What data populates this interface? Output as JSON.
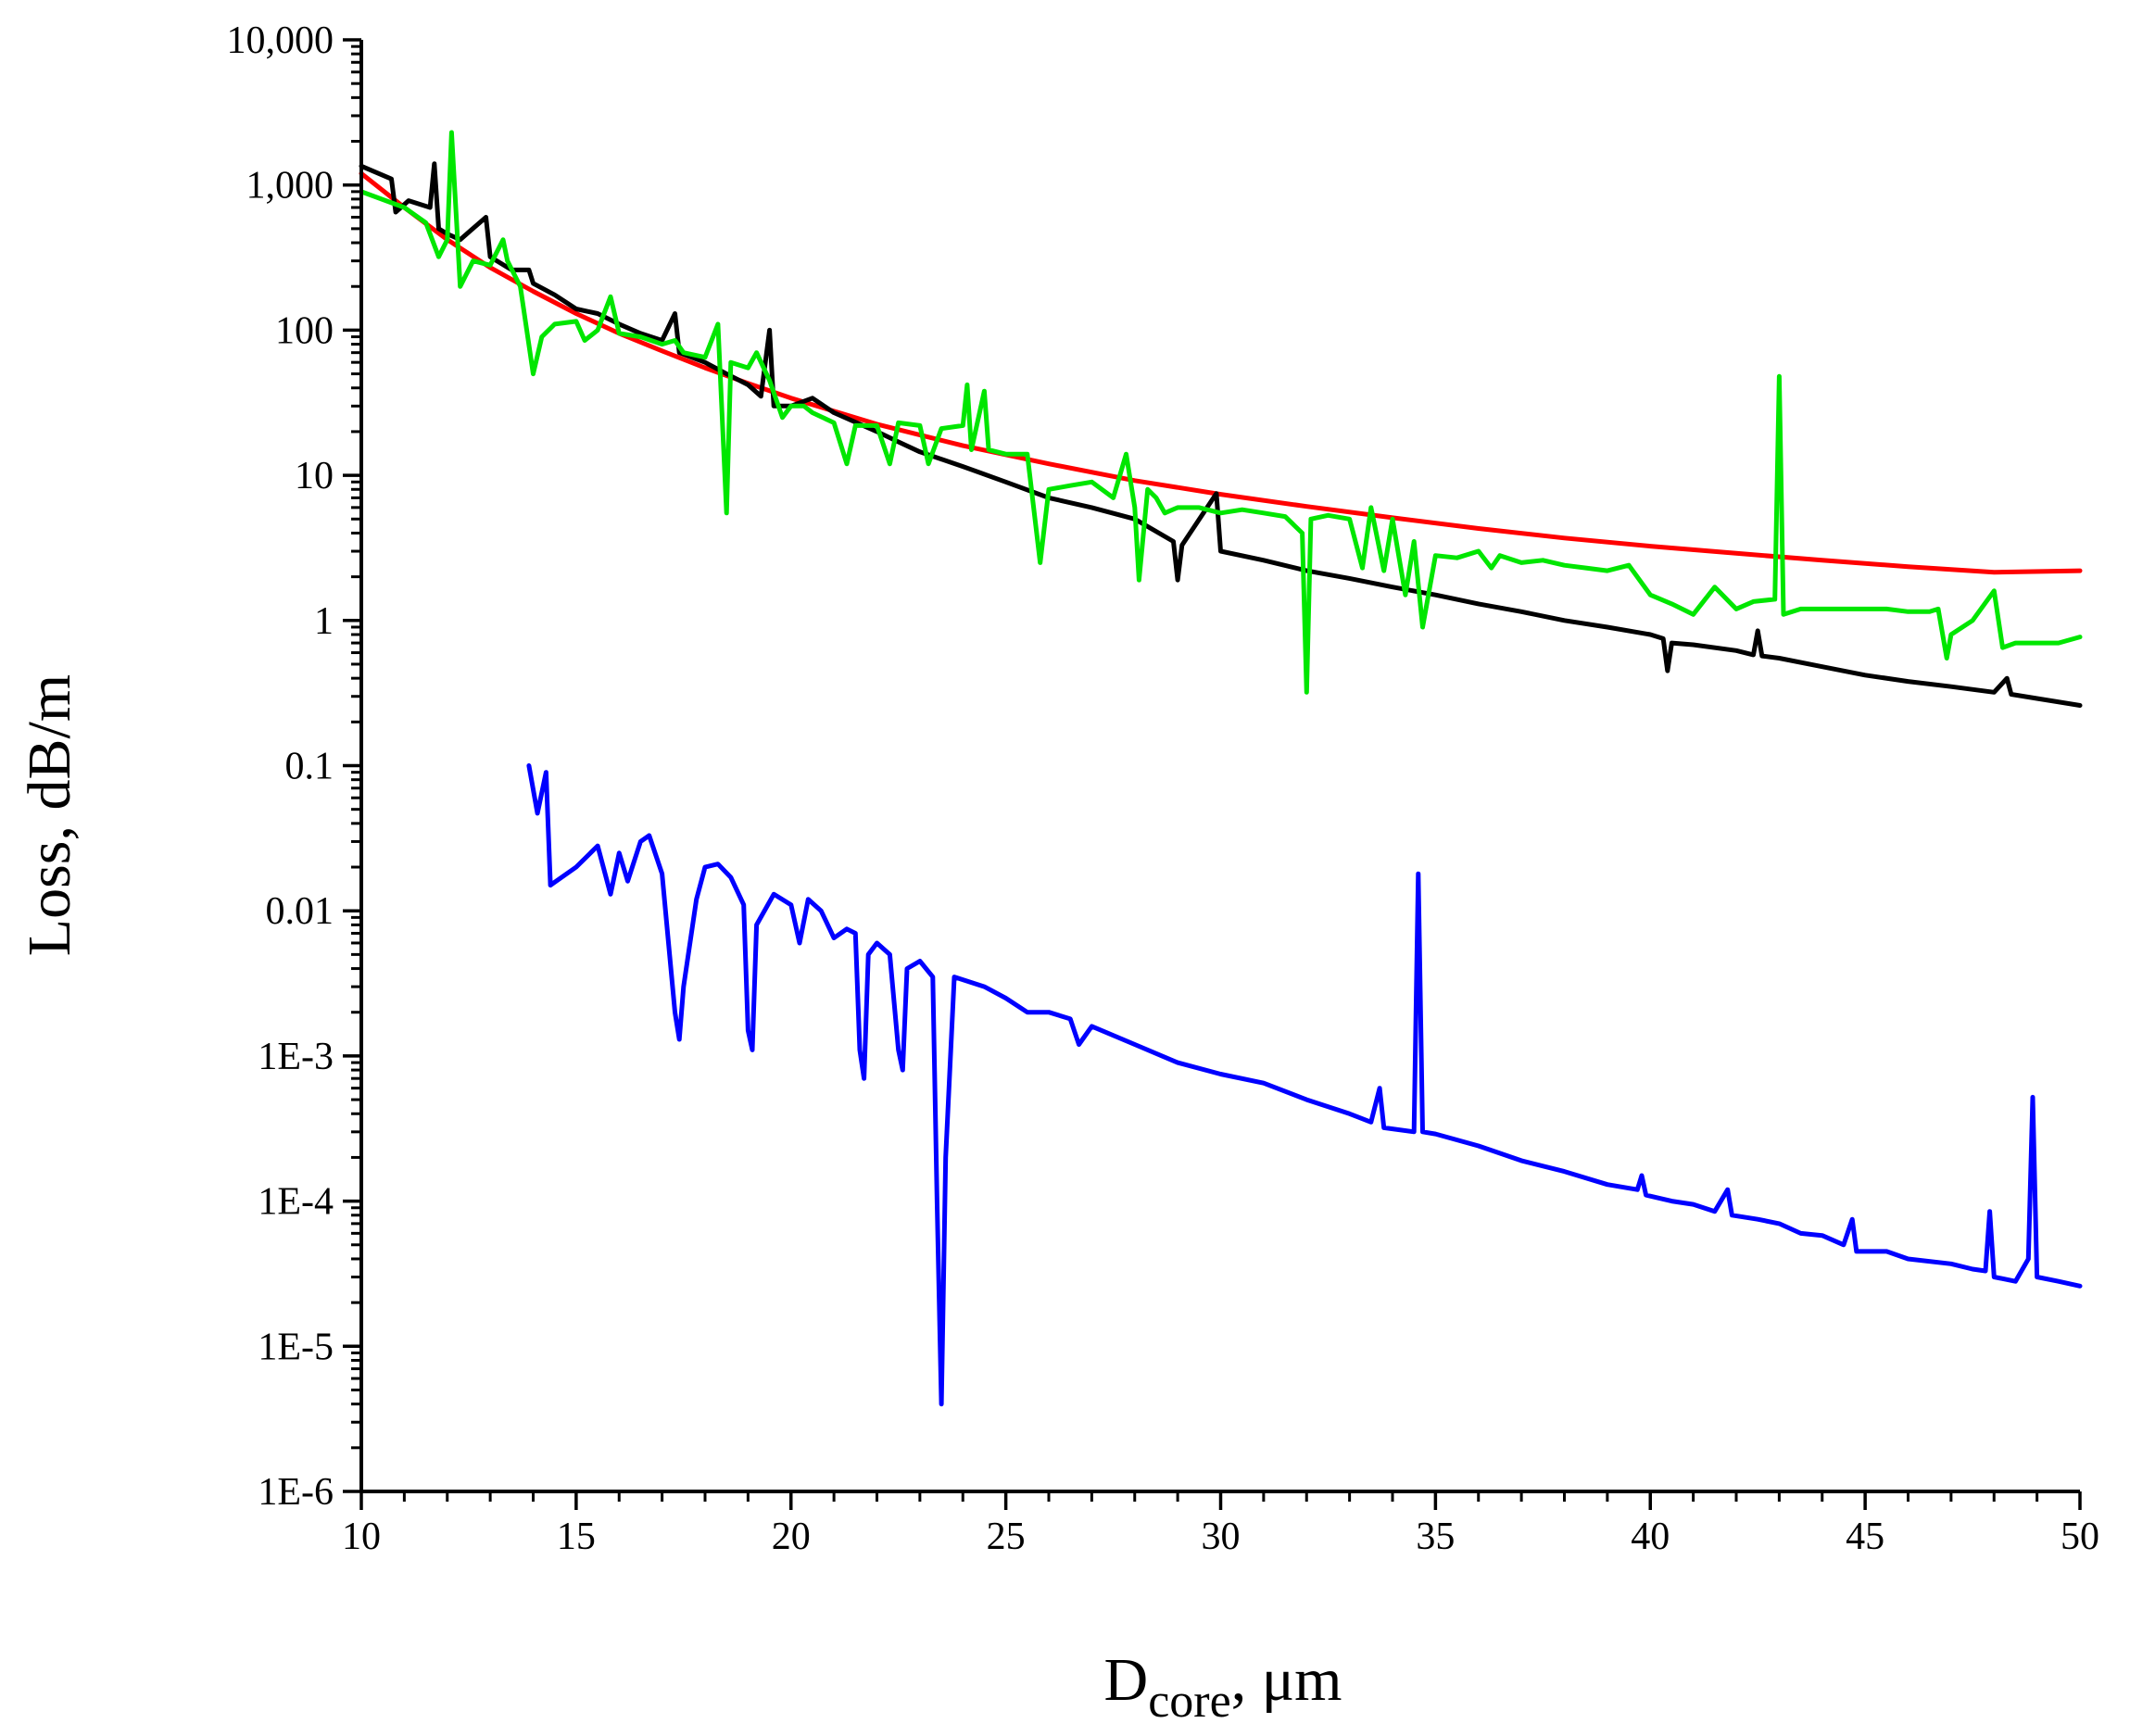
{
  "chart_data": {
    "type": "line",
    "title": "",
    "xlabel": "D",
    "xlabel_sub": "core",
    "xlabel_suffix": ", μm",
    "ylabel": "Loss, dB/m",
    "xscale": "linear",
    "yscale": "log",
    "xlim": [
      10,
      50
    ],
    "ylim": [
      1e-06,
      10000
    ],
    "x_ticks": [
      10,
      15,
      20,
      25,
      30,
      35,
      40,
      45,
      50
    ],
    "x_tick_labels": [
      "10",
      "15",
      "20",
      "25",
      "30",
      "35",
      "40",
      "45",
      "50"
    ],
    "y_ticks": [
      1e-06,
      1e-05,
      0.0001,
      0.001,
      0.01,
      0.1,
      1,
      10,
      100,
      1000,
      10000
    ],
    "y_tick_labels": [
      "1E-6",
      "1E-5",
      "1E-4",
      "1E-3",
      "0.01",
      "0.1",
      "1",
      "10",
      "100",
      "1,000",
      "10,000"
    ],
    "grid": false,
    "legend": "none",
    "series": [
      {
        "name": "red",
        "color": "#ff0000",
        "points": [
          [
            10,
            1200
          ],
          [
            11,
            700
          ],
          [
            12,
            420
          ],
          [
            13,
            270
          ],
          [
            14,
            185
          ],
          [
            15,
            130
          ],
          [
            16,
            95
          ],
          [
            17,
            72
          ],
          [
            18,
            55
          ],
          [
            19,
            43
          ],
          [
            20,
            34
          ],
          [
            22,
            22.5
          ],
          [
            24,
            16
          ],
          [
            26,
            12
          ],
          [
            28,
            9.2
          ],
          [
            30,
            7.4
          ],
          [
            32,
            6.1
          ],
          [
            34,
            5.1
          ],
          [
            36,
            4.3
          ],
          [
            38,
            3.7
          ],
          [
            40,
            3.25
          ],
          [
            42,
            2.9
          ],
          [
            44,
            2.6
          ],
          [
            46,
            2.35
          ],
          [
            48,
            2.15
          ],
          [
            50,
            2.2
          ]
        ]
      },
      {
        "name": "black",
        "color": "#000000",
        "points": [
          [
            10,
            1350
          ],
          [
            10.7,
            1100
          ],
          [
            10.8,
            650
          ],
          [
            11.1,
            780
          ],
          [
            11.6,
            700
          ],
          [
            11.7,
            1400
          ],
          [
            11.8,
            500
          ],
          [
            12,
            460
          ],
          [
            12.3,
            420
          ],
          [
            12.9,
            600
          ],
          [
            13,
            320
          ],
          [
            13.5,
            260
          ],
          [
            13.9,
            260
          ],
          [
            14,
            210
          ],
          [
            14.5,
            175
          ],
          [
            15,
            140
          ],
          [
            15.5,
            130
          ],
          [
            16,
            110
          ],
          [
            16.5,
            95
          ],
          [
            17,
            85
          ],
          [
            17.3,
            130
          ],
          [
            17.4,
            70
          ],
          [
            18,
            60
          ],
          [
            18.5,
            50
          ],
          [
            19,
            42
          ],
          [
            19.3,
            35
          ],
          [
            19.5,
            100
          ],
          [
            19.6,
            30
          ],
          [
            20,
            30
          ],
          [
            20.5,
            34
          ],
          [
            21,
            27
          ],
          [
            22,
            20
          ],
          [
            22.5,
            17
          ],
          [
            23,
            14.5
          ],
          [
            24,
            11.5
          ],
          [
            25,
            9
          ],
          [
            26,
            7
          ],
          [
            27,
            6
          ],
          [
            28,
            5
          ],
          [
            28.9,
            3.5
          ],
          [
            29,
            1.9
          ],
          [
            29.1,
            3.3
          ],
          [
            29.9,
            7.5
          ],
          [
            30,
            3
          ],
          [
            31,
            2.6
          ],
          [
            32,
            2.2
          ],
          [
            33,
            1.95
          ],
          [
            34,
            1.7
          ],
          [
            35,
            1.5
          ],
          [
            36,
            1.3
          ],
          [
            37,
            1.15
          ],
          [
            38,
            1.0
          ],
          [
            39,
            0.9
          ],
          [
            40,
            0.8
          ],
          [
            40.3,
            0.75
          ],
          [
            40.4,
            0.45
          ],
          [
            40.5,
            0.7
          ],
          [
            41,
            0.68
          ],
          [
            42,
            0.62
          ],
          [
            42.4,
            0.58
          ],
          [
            42.5,
            0.85
          ],
          [
            42.6,
            0.57
          ],
          [
            43,
            0.55
          ],
          [
            44,
            0.48
          ],
          [
            45,
            0.42
          ],
          [
            46,
            0.38
          ],
          [
            47,
            0.35
          ],
          [
            48,
            0.32
          ],
          [
            48.3,
            0.4
          ],
          [
            48.4,
            0.31
          ],
          [
            49,
            0.29
          ],
          [
            50,
            0.26
          ]
        ]
      },
      {
        "name": "green",
        "color": "#00e600",
        "points": [
          [
            10,
            900
          ],
          [
            11,
            700
          ],
          [
            11.5,
            550
          ],
          [
            11.8,
            320
          ],
          [
            12,
            420
          ],
          [
            12.1,
            2300
          ],
          [
            12.3,
            200
          ],
          [
            12.6,
            300
          ],
          [
            13,
            280
          ],
          [
            13.3,
            420
          ],
          [
            13.4,
            300
          ],
          [
            13.7,
            200
          ],
          [
            14,
            50
          ],
          [
            14.2,
            90
          ],
          [
            14.5,
            110
          ],
          [
            15,
            115
          ],
          [
            15.2,
            85
          ],
          [
            15.5,
            100
          ],
          [
            15.8,
            170
          ],
          [
            16,
            95
          ],
          [
            16.5,
            90
          ],
          [
            17,
            80
          ],
          [
            17.3,
            85
          ],
          [
            17.5,
            70
          ],
          [
            18,
            65
          ],
          [
            18.3,
            110
          ],
          [
            18.5,
            5.5
          ],
          [
            18.6,
            60
          ],
          [
            19,
            55
          ],
          [
            19.2,
            70
          ],
          [
            19.5,
            45
          ],
          [
            19.8,
            25
          ],
          [
            20,
            30
          ],
          [
            20.3,
            30
          ],
          [
            20.5,
            27
          ],
          [
            21,
            23
          ],
          [
            21.3,
            12
          ],
          [
            21.5,
            22
          ],
          [
            22,
            22
          ],
          [
            22.3,
            12
          ],
          [
            22.5,
            23
          ],
          [
            23,
            22
          ],
          [
            23.2,
            12
          ],
          [
            23.5,
            21
          ],
          [
            24,
            22
          ],
          [
            24.1,
            42
          ],
          [
            24.2,
            15
          ],
          [
            24.5,
            38
          ],
          [
            24.6,
            15
          ],
          [
            25,
            14
          ],
          [
            25.5,
            14
          ],
          [
            25.8,
            2.5
          ],
          [
            26,
            8
          ],
          [
            26.5,
            8.5
          ],
          [
            27,
            9
          ],
          [
            27.5,
            7
          ],
          [
            27.8,
            14
          ],
          [
            28,
            6
          ],
          [
            28.1,
            1.9
          ],
          [
            28.3,
            8
          ],
          [
            28.5,
            7
          ],
          [
            28.7,
            5.5
          ],
          [
            29,
            6
          ],
          [
            29.5,
            6
          ],
          [
            30,
            5.5
          ],
          [
            30.5,
            5.8
          ],
          [
            31,
            5.5
          ],
          [
            31.5,
            5.2
          ],
          [
            31.9,
            4
          ],
          [
            32,
            0.32
          ],
          [
            32.1,
            5
          ],
          [
            32.5,
            5.3
          ],
          [
            33,
            5
          ],
          [
            33.3,
            2.3
          ],
          [
            33.5,
            6
          ],
          [
            33.8,
            2.2
          ],
          [
            34,
            5
          ],
          [
            34.3,
            1.5
          ],
          [
            34.5,
            3.5
          ],
          [
            34.7,
            0.9
          ],
          [
            35,
            2.8
          ],
          [
            35.5,
            2.7
          ],
          [
            36,
            3
          ],
          [
            36.3,
            2.3
          ],
          [
            36.5,
            2.8
          ],
          [
            37,
            2.5
          ],
          [
            37.5,
            2.6
          ],
          [
            38,
            2.4
          ],
          [
            38.5,
            2.3
          ],
          [
            39,
            2.2
          ],
          [
            39.5,
            2.4
          ],
          [
            40,
            1.5
          ],
          [
            40.5,
            1.3
          ],
          [
            41,
            1.1
          ],
          [
            41.5,
            1.7
          ],
          [
            42,
            1.2
          ],
          [
            42.4,
            1.35
          ],
          [
            42.9,
            1.4
          ],
          [
            43,
            48
          ],
          [
            43.1,
            1.1
          ],
          [
            43.5,
            1.2
          ],
          [
            44,
            1.2
          ],
          [
            44.5,
            1.2
          ],
          [
            45,
            1.2
          ],
          [
            45.5,
            1.2
          ],
          [
            46,
            1.15
          ],
          [
            46.5,
            1.15
          ],
          [
            46.7,
            1.2
          ],
          [
            46.9,
            0.55
          ],
          [
            47,
            0.8
          ],
          [
            47.5,
            1.0
          ],
          [
            48,
            1.6
          ],
          [
            48.2,
            0.65
          ],
          [
            48.5,
            0.7
          ],
          [
            49,
            0.7
          ],
          [
            49.5,
            0.7
          ],
          [
            50,
            0.77
          ]
        ]
      },
      {
        "name": "blue",
        "color": "#0000ff",
        "points": [
          [
            13.9,
            0.1
          ],
          [
            14.1,
            0.047
          ],
          [
            14.3,
            0.09
          ],
          [
            14.4,
            0.015
          ],
          [
            15,
            0.02
          ],
          [
            15.5,
            0.028
          ],
          [
            15.8,
            0.013
          ],
          [
            16,
            0.025
          ],
          [
            16.2,
            0.016
          ],
          [
            16.5,
            0.03
          ],
          [
            16.7,
            0.033
          ],
          [
            17,
            0.018
          ],
          [
            17.3,
            0.002
          ],
          [
            17.4,
            0.0013
          ],
          [
            17.5,
            0.003
          ],
          [
            17.8,
            0.012
          ],
          [
            18,
            0.02
          ],
          [
            18.3,
            0.021
          ],
          [
            18.6,
            0.017
          ],
          [
            18.9,
            0.011
          ],
          [
            19,
            0.0015
          ],
          [
            19.1,
            0.0011
          ],
          [
            19.2,
            0.008
          ],
          [
            19.6,
            0.013
          ],
          [
            20,
            0.011
          ],
          [
            20.2,
            0.006
          ],
          [
            20.4,
            0.012
          ],
          [
            20.7,
            0.01
          ],
          [
            21,
            0.0065
          ],
          [
            21.3,
            0.0075
          ],
          [
            21.5,
            0.007
          ],
          [
            21.6,
            0.0011
          ],
          [
            21.7,
            0.0007
          ],
          [
            21.8,
            0.005
          ],
          [
            22,
            0.006
          ],
          [
            22.3,
            0.005
          ],
          [
            22.5,
            0.0011
          ],
          [
            22.6,
            0.0008
          ],
          [
            22.7,
            0.004
          ],
          [
            23,
            0.0045
          ],
          [
            23.3,
            0.0035
          ],
          [
            23.4,
            0.0001
          ],
          [
            23.5,
            4e-06
          ],
          [
            23.6,
            0.0002
          ],
          [
            23.8,
            0.0035
          ],
          [
            24.5,
            0.003
          ],
          [
            25,
            0.0025
          ],
          [
            25.5,
            0.002
          ],
          [
            26,
            0.002
          ],
          [
            26.5,
            0.0018
          ],
          [
            26.7,
            0.0012
          ],
          [
            27,
            0.0016
          ],
          [
            28,
            0.0012
          ],
          [
            29,
            0.0009
          ],
          [
            30,
            0.00075
          ],
          [
            31,
            0.00065
          ],
          [
            32,
            0.0005
          ],
          [
            33,
            0.0004
          ],
          [
            33.5,
            0.00035
          ],
          [
            33.7,
            0.0006
          ],
          [
            33.8,
            0.00032
          ],
          [
            34.5,
            0.0003
          ],
          [
            34.6,
            0.018
          ],
          [
            34.7,
            0.0003
          ],
          [
            35,
            0.00029
          ],
          [
            36,
            0.00024
          ],
          [
            37,
            0.00019
          ],
          [
            38,
            0.00016
          ],
          [
            39,
            0.00013
          ],
          [
            39.7,
            0.00012
          ],
          [
            39.8,
            0.00015
          ],
          [
            39.9,
            0.00011
          ],
          [
            40.5,
            0.0001
          ],
          [
            41,
            9.5e-05
          ],
          [
            41.5,
            8.5e-05
          ],
          [
            41.8,
            0.00012
          ],
          [
            41.9,
            8e-05
          ],
          [
            42.5,
            7.5e-05
          ],
          [
            43,
            7e-05
          ],
          [
            43.5,
            6e-05
          ],
          [
            44,
            5.8e-05
          ],
          [
            44.5,
            5e-05
          ],
          [
            44.7,
            7.5e-05
          ],
          [
            44.8,
            4.5e-05
          ],
          [
            45.5,
            4.5e-05
          ],
          [
            46,
            4e-05
          ],
          [
            47,
            3.7e-05
          ],
          [
            47.5,
            3.4e-05
          ],
          [
            47.8,
            3.3e-05
          ],
          [
            47.9,
            8.5e-05
          ],
          [
            48,
            3e-05
          ],
          [
            48.5,
            2.8e-05
          ],
          [
            48.8,
            4e-05
          ],
          [
            48.9,
            0.00052
          ],
          [
            49,
            3e-05
          ],
          [
            49.5,
            2.8e-05
          ],
          [
            50,
            2.6e-05
          ]
        ]
      }
    ]
  }
}
